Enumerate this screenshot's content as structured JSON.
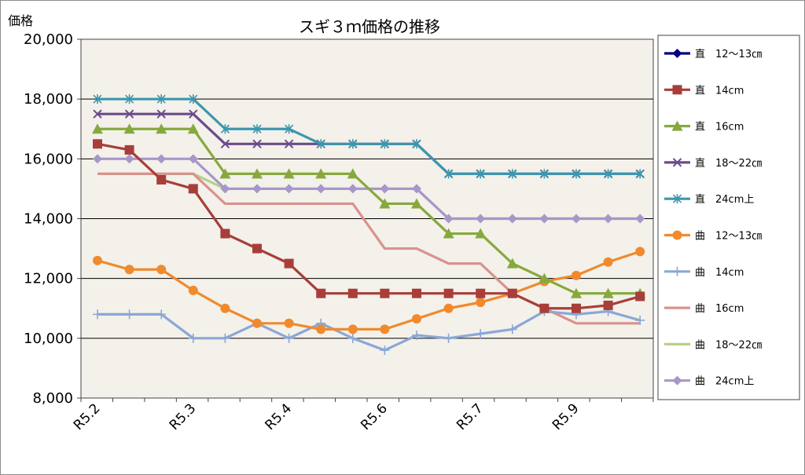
{
  "chart_data": {
    "type": "line",
    "title": "スギ３ｍ価格の推移",
    "ylabel": "価格",
    "xlabel": "",
    "ylim": [
      8000,
      20000
    ],
    "yticks": [
      "8,000",
      "10,000",
      "12,000",
      "14,000",
      "16,000",
      "18,000",
      "20,000"
    ],
    "ytick_values": [
      8000,
      10000,
      12000,
      14000,
      16000,
      18000,
      20000
    ],
    "x_tick_labels": [
      "R5.2",
      "R5.3",
      "R5.4",
      "R5.6",
      "R5.7",
      "R5.9"
    ],
    "x_tick_positions": [
      0,
      3,
      6,
      9,
      12,
      15
    ],
    "n_points": 18,
    "grid": "horizontal",
    "legend_position": "right",
    "series": [
      {
        "name": "直　12〜13㎝",
        "color": "#00007f",
        "marker": "diamond",
        "values": []
      },
      {
        "name": "直　14cm",
        "color": "#a83e3a",
        "marker": "square",
        "values": [
          16500,
          16300,
          15300,
          15000,
          13500,
          13000,
          12500,
          11500,
          11500,
          11500,
          11500,
          11500,
          11500,
          11500,
          11000,
          11000,
          11100,
          11400
        ]
      },
      {
        "name": "直　16cm",
        "color": "#86a93d",
        "marker": "triangle",
        "values": [
          17000,
          17000,
          17000,
          17000,
          15500,
          15500,
          15500,
          15500,
          15500,
          14500,
          14500,
          13500,
          13500,
          12500,
          12000,
          11500,
          11500,
          11500
        ]
      },
      {
        "name": "直　18〜22㎝",
        "color": "#6c4a8c",
        "marker": "x",
        "values": [
          17500,
          17500,
          17500,
          17500,
          16500,
          16500,
          16500,
          16500,
          16500,
          16500,
          16500,
          15500,
          15500,
          15500,
          15500,
          15500,
          15500,
          15500
        ]
      },
      {
        "name": "直　24cm上",
        "color": "#3d96ae",
        "marker": "star",
        "values": [
          18000,
          18000,
          18000,
          18000,
          17000,
          17000,
          17000,
          16500,
          16500,
          16500,
          16500,
          15500,
          15500,
          15500,
          15500,
          15500,
          15500,
          15500
        ]
      },
      {
        "name": "曲　12〜13㎝",
        "color": "#f08a2d",
        "marker": "circle",
        "values": [
          12600,
          12300,
          12300,
          11600,
          11000,
          10500,
          10500,
          10300,
          10300,
          10300,
          10650,
          11000,
          11200,
          11500,
          11900,
          12100,
          12550,
          12900
        ]
      },
      {
        "name": "曲　14cm",
        "color": "#8ba7d6",
        "marker": "plus",
        "values": [
          10800,
          10800,
          10800,
          10000,
          10000,
          10500,
          10000,
          10500,
          10000,
          9600,
          10100,
          10000,
          10150,
          10300,
          10900,
          10800,
          10900,
          10600
        ]
      },
      {
        "name": "曲　16cm",
        "color": "#d9928f",
        "marker": "none",
        "values": [
          15500,
          15500,
          15500,
          15500,
          14500,
          14500,
          14500,
          14500,
          14500,
          13000,
          13000,
          12500,
          12500,
          11500,
          11000,
          10500,
          10500,
          10500
        ]
      },
      {
        "name": "曲　18〜22㎝",
        "color": "#b6d08c",
        "marker": "none",
        "values": [
          15500,
          15500,
          15500,
          15500,
          15000,
          15000,
          15000,
          15000,
          15000,
          15000,
          15000,
          14000,
          14000,
          14000,
          14000,
          14000,
          14000,
          14000
        ]
      },
      {
        "name": "曲　24cm上",
        "color": "#a797c9",
        "marker": "diamond",
        "values": [
          16000,
          16000,
          16000,
          16000,
          15000,
          15000,
          15000,
          15000,
          15000,
          15000,
          15000,
          14000,
          14000,
          14000,
          14000,
          14000,
          14000,
          14000
        ]
      }
    ]
  }
}
